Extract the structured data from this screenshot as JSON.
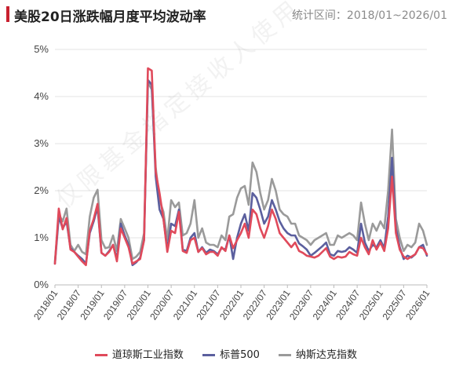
{
  "header": {
    "title": "美股20日涨跌幅月度平均波动率",
    "range_label": "统计区间：2018/01~2026/01"
  },
  "watermark": "仅限基金指定接收人使用",
  "colors": {
    "dji": "#e04a5b",
    "spx": "#5b5f9e",
    "ndx": "#9a9a9a",
    "accent": "#c8202f"
  },
  "chart_data": {
    "type": "line",
    "title": "美股20日涨跌幅月度平均波动率",
    "xlabel": "",
    "ylabel": "",
    "ylim": [
      0,
      5
    ],
    "yticks": [
      "0%",
      "1%",
      "2%",
      "3%",
      "4%",
      "5%"
    ],
    "xticks": [
      "2018/01",
      "2018/07",
      "2019/01",
      "2019/07",
      "2020/01",
      "2020/07",
      "2021/01",
      "2021/07",
      "2022/01",
      "2022/07",
      "2023/01",
      "2023/07",
      "2024/01",
      "2024/07",
      "2025/01",
      "2025/07",
      "2026/01"
    ],
    "grid": "horizontal",
    "legend": "bottom",
    "x": [
      "2018/01",
      "2018/02",
      "2018/03",
      "2018/04",
      "2018/05",
      "2018/06",
      "2018/07",
      "2018/08",
      "2018/09",
      "2018/10",
      "2018/11",
      "2018/12",
      "2019/01",
      "2019/02",
      "2019/03",
      "2019/04",
      "2019/05",
      "2019/06",
      "2019/07",
      "2019/08",
      "2019/09",
      "2019/10",
      "2019/11",
      "2019/12",
      "2020/01",
      "2020/02",
      "2020/03",
      "2020/04",
      "2020/05",
      "2020/06",
      "2020/07",
      "2020/08",
      "2020/09",
      "2020/10",
      "2020/11",
      "2020/12",
      "2021/01",
      "2021/02",
      "2021/03",
      "2021/04",
      "2021/05",
      "2021/06",
      "2021/07",
      "2021/08",
      "2021/09",
      "2021/10",
      "2021/11",
      "2021/12",
      "2022/01",
      "2022/02",
      "2022/03",
      "2022/04",
      "2022/05",
      "2022/06",
      "2022/07",
      "2022/08",
      "2022/09",
      "2022/10",
      "2022/11",
      "2022/12",
      "2023/01",
      "2023/02",
      "2023/03",
      "2023/04",
      "2023/05",
      "2023/06",
      "2023/07",
      "2023/08",
      "2023/09",
      "2023/10",
      "2023/11",
      "2023/12",
      "2024/01",
      "2024/02",
      "2024/03",
      "2024/04",
      "2024/05",
      "2024/06",
      "2024/07",
      "2024/08",
      "2024/09",
      "2024/10",
      "2024/11",
      "2024/12",
      "2025/01",
      "2025/02",
      "2025/03",
      "2025/04",
      "2025/05",
      "2025/06",
      "2025/07",
      "2025/08",
      "2025/09",
      "2025/10",
      "2025/11",
      "2025/12",
      "2026/01"
    ],
    "series": [
      {
        "name": "道琼斯工业指数",
        "color": "#e04a5b",
        "values": [
          0.45,
          1.62,
          1.18,
          1.42,
          0.75,
          0.7,
          0.6,
          0.5,
          0.42,
          1.15,
          1.4,
          1.72,
          0.68,
          0.62,
          0.7,
          0.85,
          0.5,
          1.2,
          1.0,
          0.8,
          0.45,
          0.5,
          0.55,
          0.95,
          4.6,
          4.55,
          2.4,
          1.95,
          1.4,
          0.7,
          1.15,
          1.1,
          1.55,
          0.72,
          0.68,
          0.95,
          1.0,
          0.7,
          0.78,
          0.65,
          0.7,
          0.7,
          0.62,
          0.8,
          0.72,
          1.05,
          0.78,
          0.95,
          1.1,
          1.3,
          1.0,
          1.6,
          1.5,
          1.2,
          1.0,
          1.25,
          1.6,
          1.4,
          1.1,
          1.0,
          0.9,
          0.8,
          0.9,
          0.72,
          0.68,
          0.62,
          0.6,
          0.58,
          0.62,
          0.7,
          0.78,
          0.6,
          0.55,
          0.6,
          0.58,
          0.6,
          0.7,
          0.65,
          0.62,
          1.0,
          0.8,
          0.65,
          0.95,
          0.75,
          0.9,
          0.72,
          1.2,
          2.3,
          1.1,
          0.75,
          0.6,
          0.55,
          0.6,
          0.65,
          0.8,
          0.78,
          0.65
        ]
      },
      {
        "name": "标普500",
        "color": "#5b5f9e",
        "values": [
          0.45,
          1.45,
          1.2,
          1.35,
          0.78,
          0.7,
          0.62,
          0.55,
          0.45,
          1.1,
          1.35,
          1.65,
          0.68,
          0.62,
          0.72,
          0.85,
          0.55,
          1.3,
          1.05,
          0.85,
          0.42,
          0.48,
          0.58,
          0.95,
          4.35,
          4.25,
          2.3,
          1.6,
          1.4,
          0.75,
          1.3,
          1.25,
          1.6,
          0.75,
          0.72,
          1.0,
          1.1,
          0.7,
          0.8,
          0.68,
          0.75,
          0.72,
          0.65,
          0.78,
          0.75,
          1.05,
          0.55,
          1.0,
          1.3,
          1.5,
          1.15,
          1.95,
          1.85,
          1.6,
          1.3,
          1.45,
          1.8,
          1.6,
          1.35,
          1.2,
          1.1,
          1.05,
          1.05,
          0.88,
          0.82,
          0.75,
          0.62,
          0.68,
          0.75,
          0.82,
          0.9,
          0.65,
          0.62,
          0.72,
          0.7,
          0.72,
          0.8,
          0.75,
          0.68,
          1.3,
          0.9,
          0.72,
          0.85,
          0.8,
          0.95,
          0.78,
          1.45,
          2.7,
          1.2,
          0.8,
          0.55,
          0.62,
          0.58,
          0.65,
          0.8,
          0.85,
          0.62
        ]
      },
      {
        "name": "纳斯达克指数",
        "color": "#9a9a9a",
        "values": [
          0.5,
          1.5,
          1.35,
          1.62,
          0.85,
          0.72,
          0.85,
          0.7,
          0.65,
          1.45,
          1.85,
          2.02,
          0.95,
          0.78,
          0.8,
          1.05,
          0.72,
          1.4,
          1.2,
          1.0,
          0.55,
          0.6,
          0.7,
          1.1,
          4.3,
          4.15,
          2.5,
          1.8,
          1.55,
          0.95,
          1.8,
          1.65,
          1.75,
          1.05,
          1.1,
          1.3,
          1.8,
          1.0,
          1.2,
          0.9,
          0.85,
          0.85,
          0.8,
          1.05,
          0.95,
          1.45,
          1.5,
          1.85,
          2.05,
          2.1,
          1.7,
          2.6,
          2.4,
          1.95,
          1.6,
          1.8,
          2.25,
          2.0,
          1.6,
          1.5,
          1.45,
          1.3,
          1.3,
          1.05,
          1.0,
          0.95,
          0.85,
          0.95,
          1.0,
          1.05,
          1.1,
          0.85,
          0.85,
          1.05,
          1.0,
          1.05,
          1.1,
          1.05,
          0.95,
          1.75,
          1.3,
          0.95,
          1.3,
          1.15,
          1.35,
          1.2,
          2.0,
          3.3,
          1.4,
          1.0,
          0.72,
          0.85,
          0.8,
          0.9,
          1.3,
          1.15,
          0.85
        ]
      }
    ]
  }
}
